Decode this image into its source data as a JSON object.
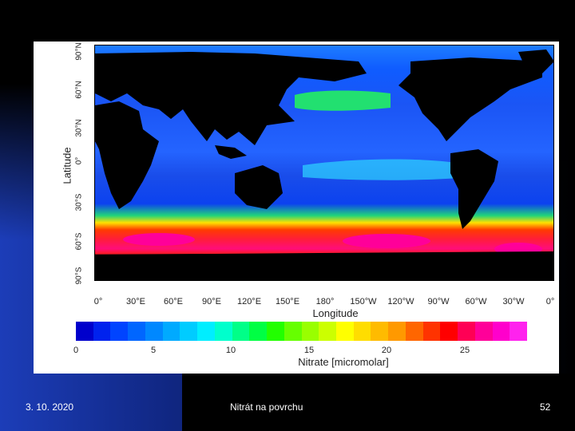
{
  "slide": {
    "date": "3. 10. 2020",
    "title": "Nitrát na povrchu",
    "page_number": "52"
  },
  "map": {
    "y_axis_title": "Latitude",
    "x_axis_title": "Longitude",
    "lat_ticks": [
      "90°N",
      "60°N",
      "30°N",
      "0°",
      "30°S",
      "60°S",
      "90°S"
    ],
    "lon_ticks": [
      "0°",
      "30°E",
      "60°E",
      "90°E",
      "120°E",
      "150°E",
      "180°",
      "150°W",
      "120°W",
      "90°W",
      "60°W",
      "30°W",
      "0°"
    ]
  },
  "colorbar": {
    "title": "Nitrate [micromolar]",
    "tick_labels": [
      "0",
      "5",
      "10",
      "15",
      "20",
      "25"
    ],
    "range": [
      0,
      29
    ],
    "colors": [
      "#0000cc",
      "#0022ee",
      "#0044ff",
      "#0066ff",
      "#0088ff",
      "#00aaff",
      "#00ccff",
      "#00eeff",
      "#00ffcc",
      "#00ff88",
      "#00ff44",
      "#22ff00",
      "#66ff00",
      "#99ff00",
      "#ccff00",
      "#ffff00",
      "#ffdd00",
      "#ffbb00",
      "#ff9900",
      "#ff6600",
      "#ff3300",
      "#ff0000",
      "#ff0055",
      "#ff0099",
      "#ff00cc",
      "#ff22ee"
    ]
  }
}
